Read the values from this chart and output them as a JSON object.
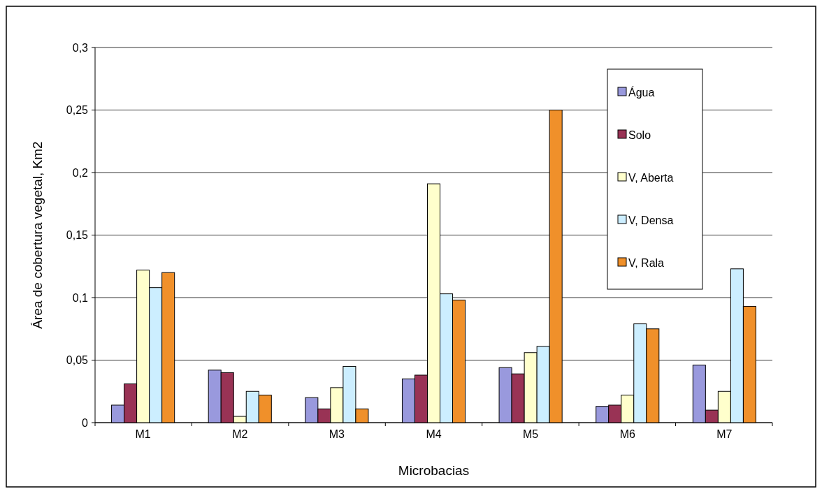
{
  "chart_data": {
    "type": "bar",
    "xlabel": "Microbacias",
    "ylabel": "Área de cobertura vegetal, Km2",
    "categories": [
      "M1",
      "M2",
      "M3",
      "M4",
      "M5",
      "M6",
      "M7"
    ],
    "series": [
      {
        "name": "Água",
        "color": "#9999dd",
        "values": [
          0.014,
          0.042,
          0.02,
          0.035,
          0.044,
          0.013,
          0.046
        ]
      },
      {
        "name": "Solo",
        "color": "#993355",
        "values": [
          0.031,
          0.04,
          0.011,
          0.038,
          0.039,
          0.014,
          0.01
        ]
      },
      {
        "name": "V, Aberta",
        "color": "#ffffcc",
        "values": [
          0.122,
          0.005,
          0.028,
          0.191,
          0.056,
          0.022,
          0.025
        ]
      },
      {
        "name": "V, Densa",
        "color": "#cceeff",
        "values": [
          0.108,
          0.025,
          0.045,
          0.103,
          0.061,
          0.079,
          0.123
        ]
      },
      {
        "name": "V, Rala",
        "color": "#f0902a",
        "values": [
          0.12,
          0.022,
          0.011,
          0.098,
          0.25,
          0.075,
          0.093
        ]
      }
    ],
    "ylim": [
      0,
      0.3
    ],
    "yticks": [
      {
        "value": 0,
        "label": "0"
      },
      {
        "value": 0.05,
        "label": "0,05"
      },
      {
        "value": 0.1,
        "label": "0,1"
      },
      {
        "value": 0.15,
        "label": "0,15"
      },
      {
        "value": 0.2,
        "label": "0,2"
      },
      {
        "value": 0.25,
        "label": "0,25"
      },
      {
        "value": 0.3,
        "label": "0,3"
      }
    ],
    "grid": "y",
    "legend": "top right"
  }
}
